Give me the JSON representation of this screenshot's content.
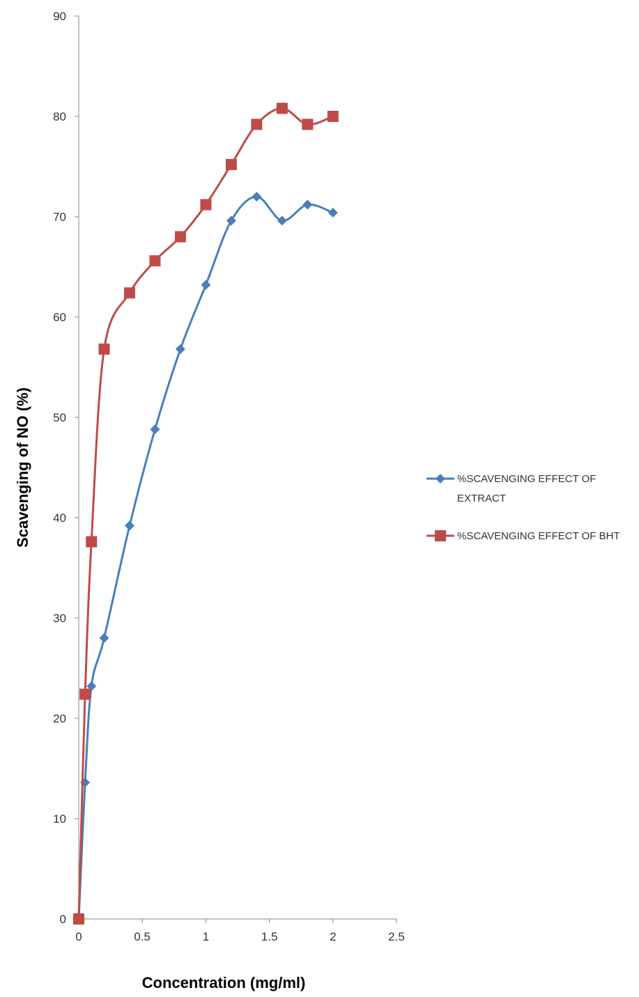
{
  "chart_data": {
    "type": "line",
    "title": "",
    "xlabel": "Concentration (mg/ml)",
    "ylabel": "Scavenging of NO (%)",
    "xlim": [
      0,
      2.5
    ],
    "ylim": [
      0,
      90
    ],
    "x_ticks": [
      "0",
      "0.5",
      "1",
      "1.5",
      "2",
      "2.5"
    ],
    "y_ticks": [
      "0",
      "10",
      "20",
      "30",
      "40",
      "50",
      "60",
      "70",
      "80",
      "90"
    ],
    "grid": false,
    "smooth": true,
    "legend_position": "right",
    "series": [
      {
        "name": "%SCAVENGING EFFECT OF EXTRACT",
        "legend_lines": [
          "%SCAVENGING EFFECT OF",
          "EXTRACT"
        ],
        "color": "#4a7ebb",
        "marker": "diamond",
        "x": [
          0,
          0.05,
          0.1,
          0.2,
          0.4,
          0.6,
          0.8,
          1.0,
          1.2,
          1.4,
          1.6,
          1.8,
          2.0
        ],
        "y": [
          0,
          13.6,
          23.2,
          28.0,
          39.2,
          48.8,
          56.8,
          63.2,
          69.6,
          72.0,
          69.6,
          71.2,
          70.4
        ]
      },
      {
        "name": "%SCAVENGING EFFECT OF BHT",
        "legend_lines": [
          "%SCAVENGING EFFECT OF BHT"
        ],
        "color": "#be4b48",
        "marker": "square",
        "x": [
          0,
          0.05,
          0.1,
          0.2,
          0.4,
          0.6,
          0.8,
          1.0,
          1.2,
          1.4,
          1.6,
          1.8,
          2.0
        ],
        "y": [
          0,
          22.4,
          37.6,
          56.8,
          62.4,
          65.6,
          68.0,
          71.2,
          75.2,
          79.2,
          80.8,
          79.2,
          80.0
        ]
      }
    ]
  }
}
